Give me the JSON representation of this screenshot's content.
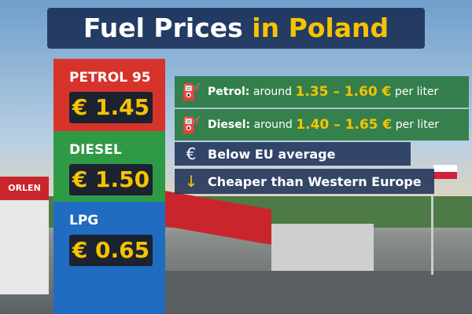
{
  "header": {
    "title": "Fuel Prices",
    "title_highlight": "in Poland"
  },
  "background": {
    "station_brand": "ORLEN"
  },
  "price_sign": [
    {
      "fuel": "PETROL 95",
      "price": "€ 1.45"
    },
    {
      "fuel": "DIESEL",
      "price": "€ 1.50"
    },
    {
      "fuel": "LPG",
      "price": "€ 0.65"
    }
  ],
  "facts": [
    {
      "label": "Petrol:",
      "prefix": "around",
      "range": "1.35 – 1.60 €",
      "unit": "per liter"
    },
    {
      "label": "Diesel:",
      "prefix": "around",
      "range": "1.40 – 1.65 €",
      "unit": "per liter"
    },
    {
      "text": "Below EU average"
    },
    {
      "text": "Cheaper than Western Europe"
    }
  ]
}
